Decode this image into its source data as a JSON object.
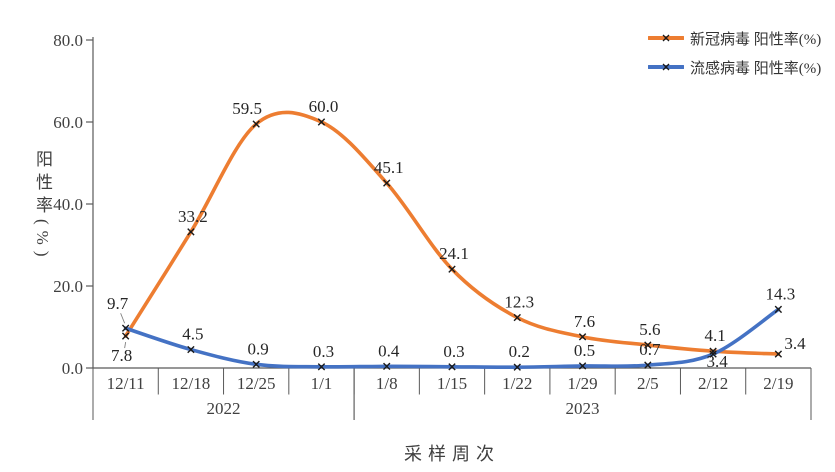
{
  "chart_data": {
    "type": "line",
    "title": "",
    "xlabel": "采样周次",
    "ylabel": "阳性率(%)",
    "ylim": [
      0,
      80
    ],
    "ytick_labels": [
      "0.0",
      "20.0",
      "40.0",
      "60.0",
      "80.0"
    ],
    "ytick_values": [
      0,
      20,
      40,
      60,
      80
    ],
    "categories": [
      "12/11",
      "12/18",
      "12/25",
      "1/1",
      "1/8",
      "1/15",
      "1/22",
      "1/29",
      "2/5",
      "2/12",
      "2/19"
    ],
    "x_groups": [
      {
        "label": "2022",
        "start": 0,
        "end": 3
      },
      {
        "label": "2023",
        "start": 4,
        "end": 10
      }
    ],
    "grid": false,
    "smooth": true,
    "marker": "x",
    "marker_color": "#1a1a1a",
    "axis_color": "#595959",
    "label_color": "#262626",
    "tick_label_color": "#404040",
    "legend_position": "top-right",
    "series": [
      {
        "name": "新冠病毒 阳性率(%)",
        "color": "#ED7D31",
        "values": [
          7.8,
          33.2,
          59.5,
          60.0,
          45.1,
          24.1,
          12.3,
          7.6,
          5.6,
          4.1,
          3.4
        ],
        "labels": [
          "7.8",
          "33.2",
          "59.5",
          "60.0",
          "45.1",
          "24.1",
          "12.3",
          "7.6",
          "5.6",
          "4.1",
          "3.4"
        ],
        "label_placement": [
          "below-far",
          "above",
          "above-left",
          "above",
          "above",
          "above",
          "above",
          "above",
          "above",
          "above",
          "above-right"
        ]
      },
      {
        "name": "流感病毒 阳性率(%)",
        "color": "#4472C4",
        "values": [
          9.7,
          4.5,
          0.9,
          0.3,
          0.4,
          0.3,
          0.2,
          0.5,
          0.7,
          3.4,
          14.3
        ],
        "labels": [
          "9.7",
          "4.5",
          "0.9",
          "0.3",
          "0.4",
          "0.3",
          "0.2",
          "0.5",
          "0.7",
          "3.4",
          "14.3"
        ],
        "label_placement": [
          "above-left-leader",
          "above",
          "above",
          "above",
          "above",
          "above",
          "above",
          "above",
          "above",
          "below",
          "above"
        ]
      }
    ]
  }
}
